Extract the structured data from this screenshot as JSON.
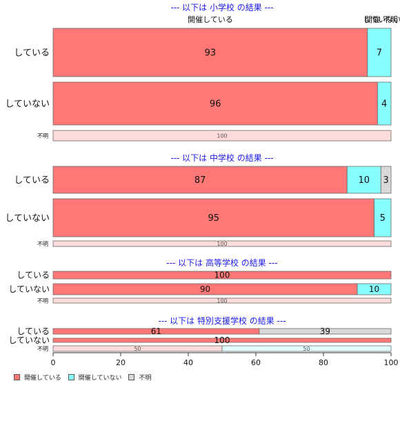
{
  "chart_data": {
    "type": "bar",
    "orientation": "horizontal-stacked",
    "series": [
      {
        "name": "開催している",
        "color": "#ff7777"
      },
      {
        "name": "開催していない",
        "color": "#88ffff"
      },
      {
        "name": "不明",
        "color": "#d9d9d9"
      }
    ],
    "top_labels": [
      "開催している",
      "開催",
      "していない",
      "不明"
    ],
    "x_ticks": [
      "0",
      "20",
      "40",
      "60",
      "80",
      "100"
    ],
    "xlim": [
      0,
      100
    ],
    "panels": [
      {
        "title": "--- 以下は 小学校 の結果 ---",
        "rows": [
          {
            "label": "している",
            "values": [
              93,
              7,
              0
            ],
            "labels": [
              "93",
              "7",
              ""
            ]
          },
          {
            "label": "していない",
            "values": [
              96,
              4,
              0
            ],
            "labels": [
              "96",
              "4",
              ""
            ]
          },
          {
            "label": "不明",
            "unknown": true,
            "values": [
              100,
              0,
              0
            ],
            "labels": [
              "100",
              "",
              ""
            ]
          }
        ]
      },
      {
        "title": "--- 以下は 中学校 の結果 ---",
        "rows": [
          {
            "label": "している",
            "values": [
              87,
              10,
              3
            ],
            "labels": [
              "87",
              "10",
              "3"
            ]
          },
          {
            "label": "していない",
            "values": [
              95,
              5,
              0
            ],
            "labels": [
              "95",
              "5",
              ""
            ]
          },
          {
            "label": "不明",
            "unknown": true,
            "values": [
              100,
              0,
              0
            ],
            "labels": [
              "100",
              "",
              ""
            ]
          }
        ]
      },
      {
        "title": "--- 以下は 高等学校 の結果 ---",
        "rows": [
          {
            "label": "している",
            "values": [
              100,
              0,
              0
            ],
            "labels": [
              "100",
              "",
              ""
            ]
          },
          {
            "label": "していない",
            "values": [
              90,
              10,
              0
            ],
            "labels": [
              "90",
              "10",
              ""
            ]
          },
          {
            "label": "不明",
            "unknown": true,
            "values": [
              100,
              0,
              0
            ],
            "labels": [
              "100",
              "",
              ""
            ]
          }
        ]
      },
      {
        "title": "--- 以下は 特別支援学校 の結果 ---",
        "rows": [
          {
            "label": "している",
            "values": [
              61,
              0,
              39
            ],
            "labels": [
              "61",
              "",
              "39"
            ]
          },
          {
            "label": "していない",
            "values": [
              100,
              0,
              0
            ],
            "labels": [
              "100",
              "",
              ""
            ]
          },
          {
            "label": "不明",
            "unknown": true,
            "values": [
              50,
              50,
              0
            ],
            "labels": [
              "50",
              "50",
              ""
            ]
          }
        ]
      }
    ]
  }
}
